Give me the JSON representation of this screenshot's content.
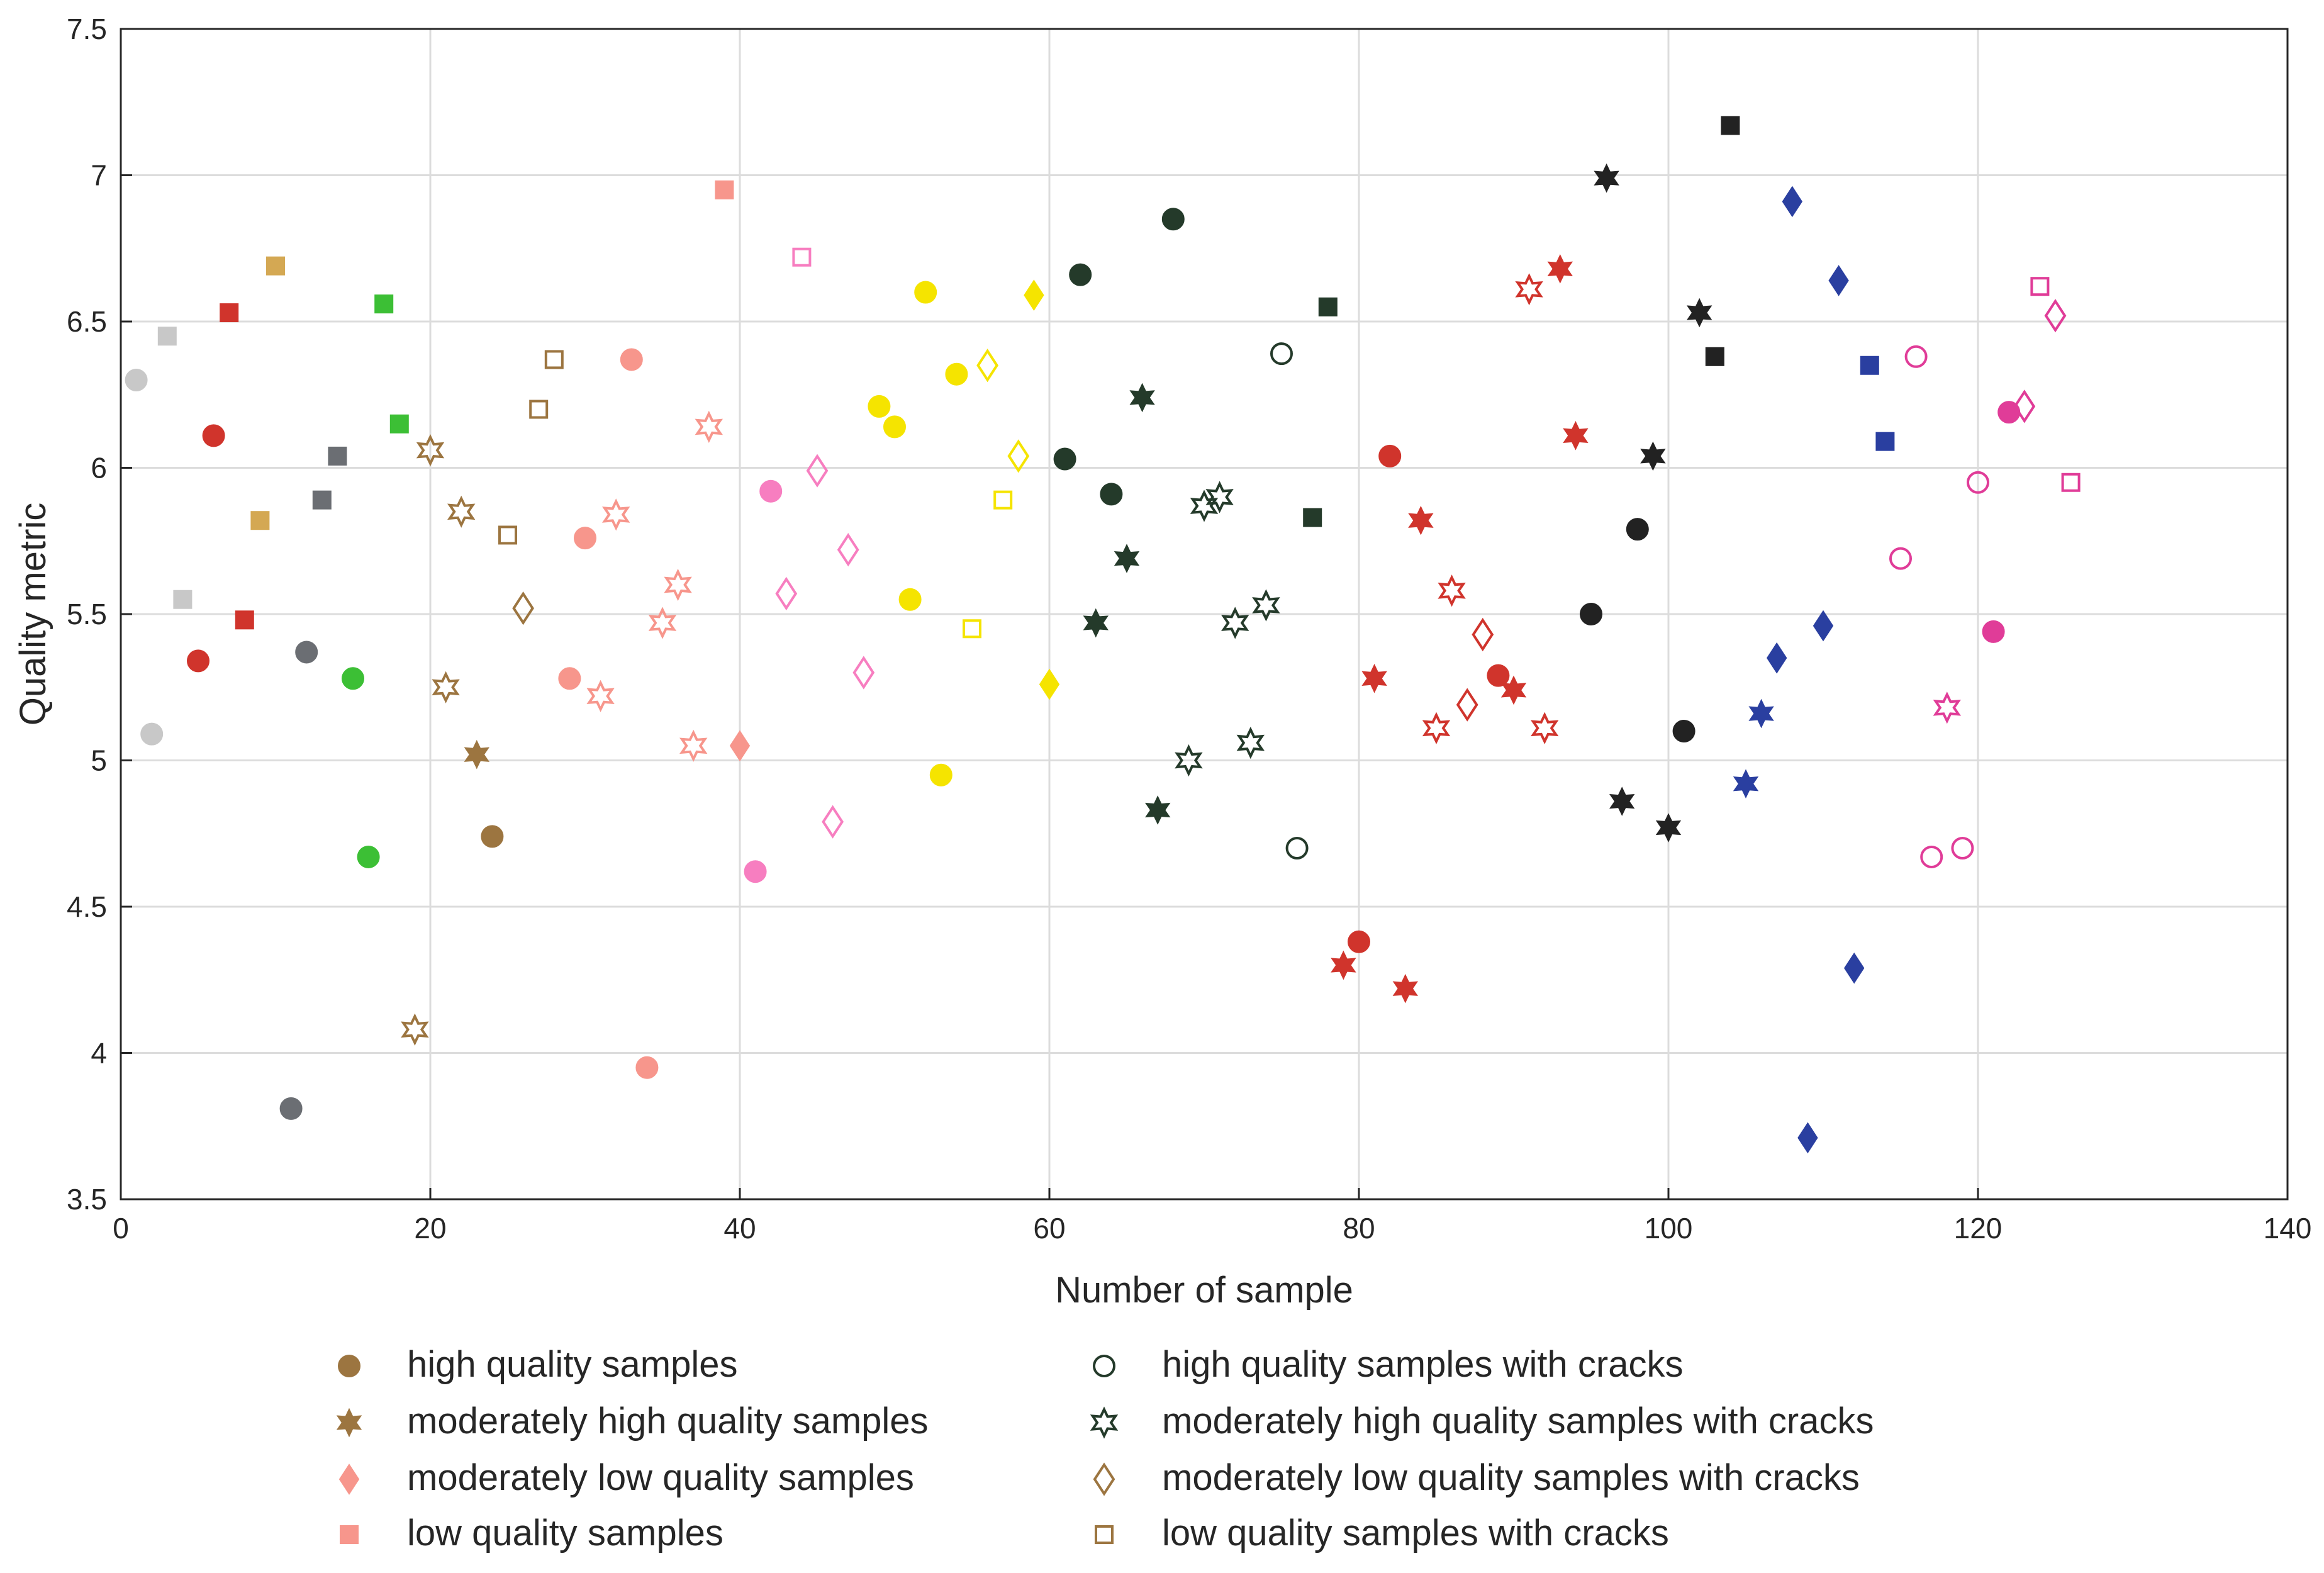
{
  "chart_data": {
    "type": "scatter",
    "title": "",
    "xlabel": "Number of sample",
    "ylabel": "Quality metric",
    "xlim": [
      0,
      140
    ],
    "ylim": [
      3.5,
      7.5
    ],
    "xticks": [
      "0",
      "20",
      "40",
      "60",
      "80",
      "100",
      "120",
      "140"
    ],
    "yticks": [
      "3.5",
      "4",
      "4.5",
      "5",
      "5.5",
      "6",
      "6.5",
      "7",
      "7.5"
    ],
    "grid": true,
    "legend_position": "below",
    "legend": [
      {
        "label": "high quality samples",
        "marker": "circle",
        "filled": true,
        "color": "#9c7540"
      },
      {
        "label": "moderately high quality samples",
        "marker": "star6",
        "filled": true,
        "color": "#9c7540"
      },
      {
        "label": "moderately low quality samples",
        "marker": "diamond",
        "filled": true,
        "color": "#f7968c"
      },
      {
        "label": "low quality samples",
        "marker": "square",
        "filled": true,
        "color": "#f7968c"
      },
      {
        "label": "high quality samples with cracks",
        "marker": "circle",
        "filled": false,
        "color": "#243a2a"
      },
      {
        "label": "moderately high quality samples with cracks",
        "marker": "star6",
        "filled": false,
        "color": "#243a2a"
      },
      {
        "label": "moderately low quality samples with cracks",
        "marker": "diamond",
        "filled": false,
        "color": "#9c7540"
      },
      {
        "label": "low quality samples with cracks",
        "marker": "square",
        "filled": false,
        "color": "#9c7540"
      }
    ],
    "series": [
      {
        "name": "light gray",
        "color": "#c8c8c8",
        "points": [
          {
            "x": 1,
            "y": 6.3,
            "m": "circle",
            "f": true
          },
          {
            "x": 2,
            "y": 5.09,
            "m": "circle",
            "f": true
          },
          {
            "x": 3,
            "y": 6.45,
            "m": "square",
            "f": true
          },
          {
            "x": 4,
            "y": 5.55,
            "m": "square",
            "f": true
          }
        ]
      },
      {
        "name": "red",
        "color": "#d0342c",
        "points": [
          {
            "x": 5,
            "y": 5.34,
            "m": "circle",
            "f": true
          },
          {
            "x": 6,
            "y": 6.11,
            "m": "circle",
            "f": true
          },
          {
            "x": 7,
            "y": 6.53,
            "m": "square",
            "f": true
          },
          {
            "x": 8,
            "y": 5.48,
            "m": "square",
            "f": true
          }
        ]
      },
      {
        "name": "tan",
        "color": "#d4a853",
        "points": [
          {
            "x": 9,
            "y": 5.82,
            "m": "square",
            "f": true
          },
          {
            "x": 10,
            "y": 6.69,
            "m": "square",
            "f": true
          }
        ]
      },
      {
        "name": "dark gray",
        "color": "#6b6e73",
        "points": [
          {
            "x": 11,
            "y": 3.81,
            "m": "circle",
            "f": true
          },
          {
            "x": 12,
            "y": 5.37,
            "m": "circle",
            "f": true
          },
          {
            "x": 13,
            "y": 5.89,
            "m": "square",
            "f": true
          },
          {
            "x": 14,
            "y": 6.04,
            "m": "square",
            "f": true
          }
        ]
      },
      {
        "name": "green",
        "color": "#3cbf35",
        "points": [
          {
            "x": 15,
            "y": 5.28,
            "m": "circle",
            "f": true
          },
          {
            "x": 16,
            "y": 4.67,
            "m": "circle",
            "f": true
          },
          {
            "x": 17,
            "y": 6.56,
            "m": "square",
            "f": true
          },
          {
            "x": 18,
            "y": 6.15,
            "m": "square",
            "f": true
          }
        ]
      },
      {
        "name": "brown",
        "color": "#9c7540",
        "points": [
          {
            "x": 19,
            "y": 4.08,
            "m": "star6",
            "f": false
          },
          {
            "x": 20,
            "y": 6.06,
            "m": "star6",
            "f": false
          },
          {
            "x": 21,
            "y": 5.25,
            "m": "star6",
            "f": false
          },
          {
            "x": 22,
            "y": 5.85,
            "m": "star6",
            "f": false
          },
          {
            "x": 23,
            "y": 5.02,
            "m": "star6",
            "f": true
          },
          {
            "x": 24,
            "y": 4.74,
            "m": "circle",
            "f": true
          },
          {
            "x": 25,
            "y": 5.77,
            "m": "square",
            "f": false
          },
          {
            "x": 26,
            "y": 5.52,
            "m": "diamond",
            "f": false
          },
          {
            "x": 27,
            "y": 6.2,
            "m": "square",
            "f": false
          },
          {
            "x": 28,
            "y": 6.37,
            "m": "square",
            "f": false
          }
        ]
      },
      {
        "name": "salmon",
        "color": "#f7968c",
        "points": [
          {
            "x": 29,
            "y": 5.28,
            "m": "circle",
            "f": true
          },
          {
            "x": 30,
            "y": 5.76,
            "m": "circle",
            "f": true
          },
          {
            "x": 31,
            "y": 5.22,
            "m": "star6",
            "f": false
          },
          {
            "x": 32,
            "y": 5.84,
            "m": "star6",
            "f": false
          },
          {
            "x": 33,
            "y": 6.37,
            "m": "circle",
            "f": true
          },
          {
            "x": 34,
            "y": 3.95,
            "m": "circle",
            "f": true
          },
          {
            "x": 35,
            "y": 5.47,
            "m": "star6",
            "f": false
          },
          {
            "x": 36,
            "y": 5.6,
            "m": "star6",
            "f": false
          },
          {
            "x": 37,
            "y": 5.05,
            "m": "star6",
            "f": false
          },
          {
            "x": 38,
            "y": 6.14,
            "m": "star6",
            "f": false
          },
          {
            "x": 39,
            "y": 6.95,
            "m": "square",
            "f": true
          },
          {
            "x": 40,
            "y": 5.05,
            "m": "diamond",
            "f": true
          }
        ]
      },
      {
        "name": "pink",
        "color": "#f77ec0",
        "points": [
          {
            "x": 41,
            "y": 4.62,
            "m": "circle",
            "f": true
          },
          {
            "x": 42,
            "y": 5.92,
            "m": "circle",
            "f": true
          },
          {
            "x": 43,
            "y": 5.57,
            "m": "diamond",
            "f": false
          },
          {
            "x": 44,
            "y": 6.72,
            "m": "square",
            "f": false
          },
          {
            "x": 45,
            "y": 5.99,
            "m": "diamond",
            "f": false
          },
          {
            "x": 46,
            "y": 4.79,
            "m": "diamond",
            "f": false
          },
          {
            "x": 47,
            "y": 5.72,
            "m": "diamond",
            "f": false
          },
          {
            "x": 48,
            "y": 5.3,
            "m": "diamond",
            "f": false
          }
        ]
      },
      {
        "name": "yellow",
        "color": "#f5e400",
        "points": [
          {
            "x": 49,
            "y": 6.21,
            "m": "circle",
            "f": true
          },
          {
            "x": 50,
            "y": 6.14,
            "m": "circle",
            "f": true
          },
          {
            "x": 51,
            "y": 5.55,
            "m": "circle",
            "f": true
          },
          {
            "x": 52,
            "y": 6.6,
            "m": "circle",
            "f": true
          },
          {
            "x": 53,
            "y": 4.95,
            "m": "circle",
            "f": true
          },
          {
            "x": 54,
            "y": 6.32,
            "m": "circle",
            "f": true
          },
          {
            "x": 55,
            "y": 5.45,
            "m": "square",
            "f": false
          },
          {
            "x": 56,
            "y": 6.35,
            "m": "diamond",
            "f": false
          },
          {
            "x": 57,
            "y": 5.89,
            "m": "square",
            "f": false
          },
          {
            "x": 58,
            "y": 6.04,
            "m": "diamond",
            "f": false
          },
          {
            "x": 59,
            "y": 6.59,
            "m": "diamond",
            "f": true
          },
          {
            "x": 60,
            "y": 5.26,
            "m": "diamond",
            "f": true
          }
        ]
      },
      {
        "name": "dark green",
        "color": "#243a2a",
        "points": [
          {
            "x": 61,
            "y": 6.03,
            "m": "circle",
            "f": true
          },
          {
            "x": 62,
            "y": 6.66,
            "m": "circle",
            "f": true
          },
          {
            "x": 63,
            "y": 5.47,
            "m": "star6",
            "f": true
          },
          {
            "x": 64,
            "y": 5.91,
            "m": "circle",
            "f": true
          },
          {
            "x": 65,
            "y": 5.69,
            "m": "star6",
            "f": true
          },
          {
            "x": 66,
            "y": 6.24,
            "m": "star6",
            "f": true
          },
          {
            "x": 67,
            "y": 4.83,
            "m": "star6",
            "f": true
          },
          {
            "x": 68,
            "y": 6.85,
            "m": "circle",
            "f": true
          },
          {
            "x": 69,
            "y": 5.0,
            "m": "star6",
            "f": false
          },
          {
            "x": 70,
            "y": 5.87,
            "m": "star6",
            "f": false
          },
          {
            "x": 71,
            "y": 5.9,
            "m": "star6",
            "f": false
          },
          {
            "x": 72,
            "y": 5.47,
            "m": "star6",
            "f": false
          },
          {
            "x": 73,
            "y": 5.06,
            "m": "star6",
            "f": false
          },
          {
            "x": 74,
            "y": 5.53,
            "m": "star6",
            "f": false
          },
          {
            "x": 75,
            "y": 6.39,
            "m": "circle",
            "f": false
          },
          {
            "x": 76,
            "y": 4.7,
            "m": "circle",
            "f": false
          },
          {
            "x": 77,
            "y": 5.83,
            "m": "square",
            "f": true
          },
          {
            "x": 78,
            "y": 6.55,
            "m": "square",
            "f": true
          }
        ]
      },
      {
        "name": "dark red",
        "color": "#d0342c",
        "points": [
          {
            "x": 79,
            "y": 4.3,
            "m": "star6",
            "f": true
          },
          {
            "x": 80,
            "y": 4.38,
            "m": "circle",
            "f": true
          },
          {
            "x": 81,
            "y": 5.28,
            "m": "star6",
            "f": true
          },
          {
            "x": 82,
            "y": 6.04,
            "m": "circle",
            "f": true
          },
          {
            "x": 83,
            "y": 4.22,
            "m": "star6",
            "f": true
          },
          {
            "x": 84,
            "y": 5.82,
            "m": "star6",
            "f": true
          },
          {
            "x": 85,
            "y": 5.11,
            "m": "star6",
            "f": false
          },
          {
            "x": 86,
            "y": 5.58,
            "m": "star6",
            "f": false
          },
          {
            "x": 87,
            "y": 5.19,
            "m": "diamond",
            "f": false
          },
          {
            "x": 88,
            "y": 5.43,
            "m": "diamond",
            "f": false
          },
          {
            "x": 89,
            "y": 5.29,
            "m": "circle",
            "f": true
          },
          {
            "x": 90,
            "y": 5.24,
            "m": "star6",
            "f": true
          },
          {
            "x": 91,
            "y": 6.61,
            "m": "star6",
            "f": false
          },
          {
            "x": 92,
            "y": 5.11,
            "m": "star6",
            "f": false
          },
          {
            "x": 93,
            "y": 6.68,
            "m": "star6",
            "f": true
          },
          {
            "x": 94,
            "y": 6.11,
            "m": "star6",
            "f": true
          }
        ]
      },
      {
        "name": "black",
        "color": "#222222",
        "points": [
          {
            "x": 95,
            "y": 5.5,
            "m": "circle",
            "f": true
          },
          {
            "x": 96,
            "y": 6.99,
            "m": "star6",
            "f": true
          },
          {
            "x": 97,
            "y": 4.86,
            "m": "star6",
            "f": true
          },
          {
            "x": 98,
            "y": 5.79,
            "m": "circle",
            "f": true
          },
          {
            "x": 99,
            "y": 6.04,
            "m": "star6",
            "f": true
          },
          {
            "x": 100,
            "y": 4.77,
            "m": "star6",
            "f": true
          },
          {
            "x": 101,
            "y": 5.1,
            "m": "circle",
            "f": true
          },
          {
            "x": 102,
            "y": 6.53,
            "m": "star6",
            "f": true
          },
          {
            "x": 103,
            "y": 6.38,
            "m": "square",
            "f": true
          },
          {
            "x": 104,
            "y": 7.17,
            "m": "square",
            "f": true
          }
        ]
      },
      {
        "name": "blue",
        "color": "#2a3fa0",
        "points": [
          {
            "x": 105,
            "y": 4.92,
            "m": "star6",
            "f": true
          },
          {
            "x": 106,
            "y": 5.16,
            "m": "star6",
            "f": true
          },
          {
            "x": 107,
            "y": 5.35,
            "m": "diamond",
            "f": true
          },
          {
            "x": 108,
            "y": 6.91,
            "m": "diamond",
            "f": true
          },
          {
            "x": 109,
            "y": 3.71,
            "m": "diamond",
            "f": true
          },
          {
            "x": 110,
            "y": 5.46,
            "m": "diamond",
            "f": true
          },
          {
            "x": 111,
            "y": 6.64,
            "m": "diamond",
            "f": true
          },
          {
            "x": 112,
            "y": 4.29,
            "m": "diamond",
            "f": true
          },
          {
            "x": 113,
            "y": 6.35,
            "m": "square",
            "f": true
          },
          {
            "x": 114,
            "y": 6.09,
            "m": "square",
            "f": true
          }
        ]
      },
      {
        "name": "magenta",
        "color": "#e03c98",
        "points": [
          {
            "x": 115,
            "y": 5.69,
            "m": "circle",
            "f": false
          },
          {
            "x": 116,
            "y": 6.38,
            "m": "circle",
            "f": false
          },
          {
            "x": 117,
            "y": 4.67,
            "m": "circle",
            "f": false
          },
          {
            "x": 118,
            "y": 5.18,
            "m": "star6",
            "f": false
          },
          {
            "x": 119,
            "y": 4.7,
            "m": "circle",
            "f": false
          },
          {
            "x": 120,
            "y": 5.95,
            "m": "circle",
            "f": false
          },
          {
            "x": 121,
            "y": 5.44,
            "m": "circle",
            "f": true
          },
          {
            "x": 122,
            "y": 6.19,
            "m": "circle",
            "f": true
          },
          {
            "x": 123,
            "y": 6.21,
            "m": "diamond",
            "f": false
          },
          {
            "x": 124,
            "y": 6.62,
            "m": "square",
            "f": false
          },
          {
            "x": 125,
            "y": 6.52,
            "m": "diamond",
            "f": false
          },
          {
            "x": 126,
            "y": 5.95,
            "m": "square",
            "f": false
          }
        ]
      }
    ]
  }
}
